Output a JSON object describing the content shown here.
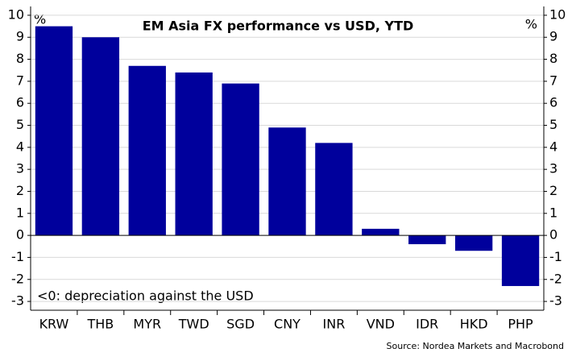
{
  "chart_data": {
    "type": "bar",
    "title": "EM Asia FX performance vs USD, YTD",
    "ylabel": "%",
    "y2label": "%",
    "categories": [
      "KRW",
      "THB",
      "MYR",
      "TWD",
      "SGD",
      "CNY",
      "INR",
      "VND",
      "IDR",
      "HKD",
      "PHP"
    ],
    "values": [
      9.5,
      9.0,
      7.7,
      7.4,
      6.9,
      4.9,
      4.2,
      0.3,
      -0.4,
      -0.7,
      -2.3
    ],
    "color": "#00009c",
    "ylim": [
      -3.4,
      10.4
    ],
    "yticks": [
      -3,
      -2,
      -1,
      0,
      1,
      2,
      3,
      4,
      5,
      6,
      7,
      8,
      9,
      10
    ],
    "y2lim": [
      -3.4,
      10.4
    ],
    "y2ticks": [
      -3,
      -2,
      -1,
      0,
      1,
      2,
      3,
      4,
      5,
      6,
      7,
      8,
      9,
      10
    ],
    "grid": true,
    "annotation": "<0: depreciation against the USD",
    "source": "Source: Nordea Markets and Macrobond"
  }
}
